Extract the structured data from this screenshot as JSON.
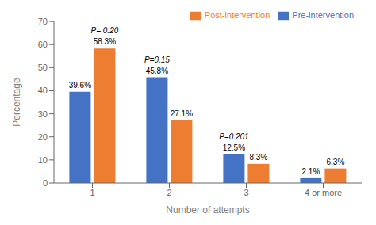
{
  "chart_data": {
    "type": "bar",
    "categories": [
      "1",
      "2",
      "3",
      "4 or more"
    ],
    "series": [
      {
        "name": "Pre-intervention",
        "color": "#4472C4",
        "values": [
          39.6,
          45.8,
          12.5,
          2.1
        ],
        "value_labels": [
          "39.6%",
          "45.8%",
          "12.5%",
          "2.1%"
        ]
      },
      {
        "name": "Post-intervention",
        "color": "#ED7D31",
        "values": [
          58.3,
          27.1,
          8.3,
          6.3
        ],
        "value_labels": [
          "58.3%",
          "27.1%",
          "8.3%",
          "6.3%"
        ]
      }
    ],
    "xlabel": "Number of attempts",
    "ylabel": "Percentage",
    "ylim": [
      0,
      70
    ],
    "yticks": [
      0,
      10,
      20,
      30,
      40,
      50,
      60,
      70
    ],
    "grid": false,
    "legend": "upper right",
    "data_labels": true,
    "annotations": [
      {
        "text": "P= 0.20",
        "category": "1"
      },
      {
        "text": "P=0.15",
        "category": "2"
      },
      {
        "text": "P=0.201",
        "category": "3"
      }
    ]
  }
}
